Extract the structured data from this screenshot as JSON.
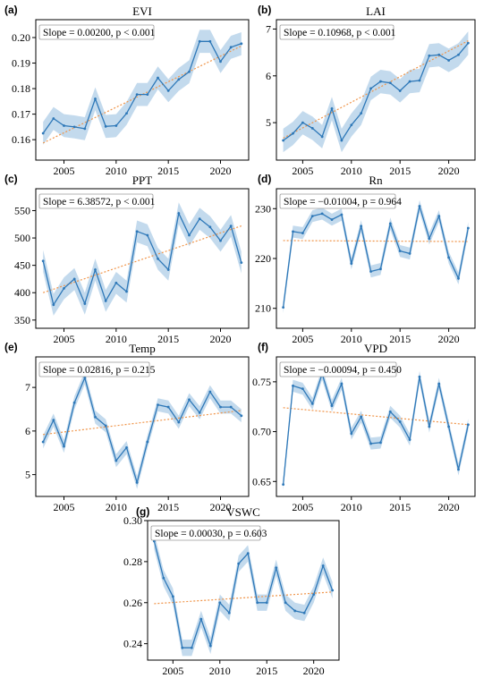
{
  "colors": {
    "line": "#2e78b8",
    "band": "#b9d3ea",
    "trend": "#f0954a",
    "annot_border": "#9a9a9a"
  },
  "chart_data": [
    {
      "type": "line",
      "letter": "(a)",
      "title": "EVI",
      "annotation": "Slope = 0.00200, p < 0.001",
      "xlabel": "",
      "ylabel": "",
      "xlim": [
        2002.3,
        2022.7
      ],
      "ylim": [
        0.152,
        0.207
      ],
      "xticks": [
        2005,
        2010,
        2015,
        2020
      ],
      "yticks": [
        0.16,
        0.17,
        0.18,
        0.19,
        0.2
      ],
      "ytick_labels": [
        "0.16",
        "0.17",
        "0.18",
        "0.19",
        "0.20"
      ],
      "x": [
        2003,
        2004,
        2005,
        2006,
        2007,
        2008,
        2009,
        2010,
        2011,
        2012,
        2013,
        2014,
        2015,
        2016,
        2017,
        2018,
        2019,
        2020,
        2021,
        2022
      ],
      "series": [
        {
          "values": [
            0.1625,
            0.1683,
            0.1655,
            0.165,
            0.1643,
            0.176,
            0.1652,
            0.1655,
            0.1703,
            0.1777,
            0.1777,
            0.1842,
            0.1792,
            0.1836,
            0.1866,
            0.1985,
            0.1985,
            0.1906,
            0.1962,
            0.1976
          ],
          "band": 0.0045
        }
      ],
      "trend": [
        0.1587,
        0.1967
      ]
    },
    {
      "type": "line",
      "letter": "(b)",
      "title": "LAI",
      "annotation": "Slope = 0.10968, p < 0.001",
      "xlabel": "",
      "ylabel": "",
      "xlim": [
        2002.3,
        2022.7
      ],
      "ylim": [
        4.2,
        7.2
      ],
      "xticks": [
        2005,
        2010,
        2015,
        2020
      ],
      "yticks": [
        5,
        6,
        7
      ],
      "ytick_labels": [
        "5",
        "6",
        "7"
      ],
      "x": [
        2003,
        2004,
        2005,
        2006,
        2007,
        2008,
        2009,
        2010,
        2011,
        2012,
        2013,
        2014,
        2015,
        2016,
        2017,
        2018,
        2019,
        2020,
        2021,
        2022
      ],
      "series": [
        {
          "values": [
            4.62,
            4.77,
            5.0,
            4.88,
            4.7,
            5.3,
            4.62,
            4.95,
            5.2,
            5.73,
            5.88,
            5.85,
            5.68,
            5.88,
            5.9,
            6.43,
            6.45,
            6.33,
            6.45,
            6.7
          ],
          "band": 0.25
        }
      ],
      "trend": [
        4.67,
        6.75
      ]
    },
    {
      "type": "line",
      "letter": "(c)",
      "title": "PPT",
      "annotation": "Slope = 6.38572, p < 0.001",
      "xlabel": "",
      "ylabel": "",
      "xlim": [
        2002.3,
        2022.7
      ],
      "ylim": [
        335,
        590
      ],
      "xticks": [
        2005,
        2010,
        2015,
        2020
      ],
      "yticks": [
        350,
        400,
        450,
        500,
        550
      ],
      "ytick_labels": [
        "350",
        "400",
        "450",
        "500",
        "550"
      ],
      "x": [
        2003,
        2004,
        2005,
        2006,
        2007,
        2008,
        2009,
        2010,
        2011,
        2012,
        2013,
        2014,
        2015,
        2016,
        2017,
        2018,
        2019,
        2020,
        2021,
        2022
      ],
      "series": [
        {
          "values": [
            458,
            378,
            408,
            425,
            380,
            442,
            385,
            418,
            402,
            512,
            505,
            462,
            442,
            545,
            505,
            535,
            520,
            495,
            522,
            455
          ],
          "band": 20
        }
      ],
      "trend": [
        400,
        522
      ]
    },
    {
      "type": "line",
      "letter": "(d)",
      "title": "Rn",
      "annotation": "Slope = −0.01004, p = 0.964",
      "xlabel": "",
      "ylabel": "",
      "xlim": [
        2002.3,
        2022.7
      ],
      "ylim": [
        206,
        234
      ],
      "xticks": [
        2005,
        2010,
        2015,
        2020
      ],
      "yticks": [
        210,
        220,
        230
      ],
      "ytick_labels": [
        "210",
        "220",
        "230"
      ],
      "x": [
        2003,
        2004,
        2005,
        2006,
        2007,
        2008,
        2009,
        2010,
        2011,
        2012,
        2013,
        2014,
        2015,
        2016,
        2017,
        2018,
        2019,
        2020,
        2021,
        2022
      ],
      "series": [
        {
          "values": [
            210.2,
            225.4,
            225.1,
            228.5,
            229.0,
            227.8,
            228.8,
            219.0,
            226.5,
            217.4,
            217.9,
            227.0,
            221.5,
            221.0,
            230.5,
            224.0,
            228.5,
            220.2,
            216.0,
            226.1
          ],
          "band": 1.2
        }
      ],
      "trend": [
        223.6,
        223.4
      ]
    },
    {
      "type": "line",
      "letter": "(e)",
      "title": "Temp",
      "annotation": "Slope = 0.02816, p = 0.215",
      "xlabel": "",
      "ylabel": "",
      "xlim": [
        2002.3,
        2022.7
      ],
      "ylim": [
        4.5,
        7.7
      ],
      "xticks": [
        2005,
        2010,
        2015,
        2020
      ],
      "yticks": [
        5,
        6,
        7
      ],
      "ytick_labels": [
        "5",
        "6",
        "7"
      ],
      "x": [
        2003,
        2004,
        2005,
        2006,
        2007,
        2008,
        2009,
        2010,
        2011,
        2012,
        2013,
        2014,
        2015,
        2016,
        2017,
        2018,
        2019,
        2020,
        2021,
        2022
      ],
      "series": [
        {
          "values": [
            5.75,
            6.25,
            5.65,
            6.65,
            7.22,
            6.32,
            6.12,
            5.32,
            5.62,
            4.82,
            5.75,
            6.6,
            6.55,
            6.2,
            6.72,
            6.42,
            6.9,
            6.55,
            6.55,
            6.35
          ],
          "band": 0.15
        }
      ],
      "trend": [
        5.92,
        6.47
      ]
    },
    {
      "type": "line",
      "letter": "(f)",
      "title": "VPD",
      "annotation": "Slope = −0.00094, p = 0.450",
      "xlabel": "",
      "ylabel": "",
      "xlim": [
        2002.3,
        2022.7
      ],
      "ylim": [
        0.635,
        0.775
      ],
      "xticks": [
        2005,
        2010,
        2015,
        2020
      ],
      "yticks": [
        0.65,
        0.7,
        0.75
      ],
      "ytick_labels": [
        "0.65",
        "0.70",
        "0.75"
      ],
      "x": [
        2003,
        2004,
        2005,
        2006,
        2007,
        2008,
        2009,
        2010,
        2011,
        2012,
        2013,
        2014,
        2015,
        2016,
        2017,
        2018,
        2019,
        2020,
        2021,
        2022
      ],
      "series": [
        {
          "values": [
            0.647,
            0.746,
            0.743,
            0.728,
            0.758,
            0.726,
            0.748,
            0.698,
            0.715,
            0.688,
            0.689,
            0.72,
            0.71,
            0.692,
            0.755,
            0.705,
            0.748,
            0.705,
            0.662,
            0.707
          ],
          "band": 0.006
        }
      ],
      "trend": [
        0.724,
        0.707
      ]
    },
    {
      "type": "line",
      "letter": "(g)",
      "title": "VSWC",
      "annotation": "Slope = 0.00030, p = 0.603",
      "xlabel": "",
      "ylabel": "",
      "xlim": [
        2002.3,
        2022.7
      ],
      "ylim": [
        0.232,
        0.3
      ],
      "xticks": [
        2005,
        2010,
        2015,
        2020
      ],
      "yticks": [
        0.24,
        0.26,
        0.28,
        0.3
      ],
      "ytick_labels": [
        "0.24",
        "0.26",
        "0.28",
        "0.30"
      ],
      "x": [
        2003,
        2004,
        2005,
        2006,
        2007,
        2008,
        2009,
        2010,
        2011,
        2012,
        2013,
        2014,
        2015,
        2016,
        2017,
        2018,
        2019,
        2020,
        2021,
        2022
      ],
      "series": [
        {
          "values": [
            0.29,
            0.272,
            0.263,
            0.238,
            0.238,
            0.252,
            0.239,
            0.26,
            0.255,
            0.279,
            0.284,
            0.26,
            0.26,
            0.277,
            0.26,
            0.256,
            0.255,
            0.264,
            0.278,
            0.266
          ],
          "band": 0.004
        }
      ],
      "trend": [
        0.2595,
        0.2652
      ]
    }
  ]
}
